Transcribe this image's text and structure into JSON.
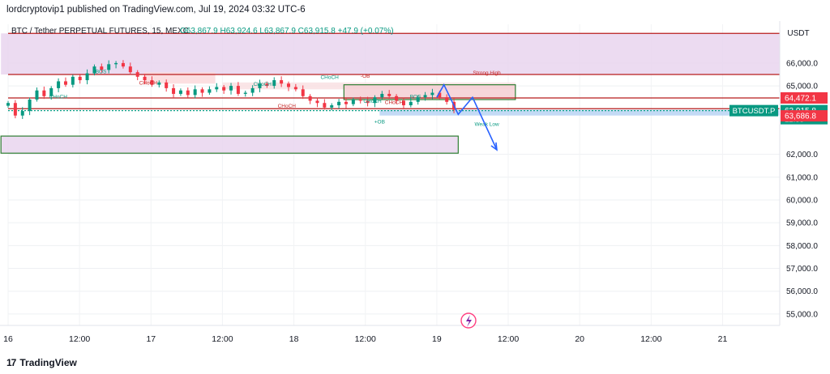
{
  "header": {
    "published": "lordcryptovip1 published on TradingView.com, Jul 19, 2024 03:32 UTC-6"
  },
  "footer": {
    "brand": "TradingView",
    "logo": "tradingview-logo"
  },
  "chart_data": {
    "type": "candlestick",
    "symbol_line": "BTC / Tether PERPETUAL FUTURES, 15, MEXC",
    "ohlc": {
      "O": "O63,867.9",
      "H": "H63,924.6",
      "L": "L63,867.9",
      "C": "C63,915.8",
      "change": "+47.9 (+0.07%)"
    },
    "currency": "USDT",
    "y_ticks": [
      {
        "label": "66,000.0",
        "value": 66000
      },
      {
        "label": "65,000.0",
        "value": 65000
      },
      {
        "label": "62,000.0",
        "value": 62000
      },
      {
        "label": "61,000.0",
        "value": 61000
      },
      {
        "label": "60,000.0",
        "value": 60000
      },
      {
        "label": "59,000.0",
        "value": 59000
      },
      {
        "label": "58,000.0",
        "value": 58000
      },
      {
        "label": "57,000.0",
        "value": 57000
      },
      {
        "label": "56,000.0",
        "value": 56000
      },
      {
        "label": "55,000.0",
        "value": 55000
      }
    ],
    "x_ticks": [
      {
        "label": "16",
        "t": 0
      },
      {
        "label": "12:00",
        "t": 0.5
      },
      {
        "label": "17",
        "t": 1
      },
      {
        "label": "12:00",
        "t": 1.5
      },
      {
        "label": "18",
        "t": 2
      },
      {
        "label": "12:00",
        "t": 2.5
      },
      {
        "label": "19",
        "t": 3
      },
      {
        "label": "12:00",
        "t": 3.5
      },
      {
        "label": "20",
        "t": 4
      },
      {
        "label": "12:00",
        "t": 4.5
      },
      {
        "label": "21",
        "t": 5
      }
    ],
    "price_tags": [
      {
        "text": "64,472.1",
        "value": 64472.1,
        "color": "#f23645"
      },
      {
        "text": "63,915.8",
        "value": 63915.8,
        "color": "#089981",
        "sub": "12:55"
      },
      {
        "text": "63,686.8",
        "value": 63686.8,
        "color": "#f23645"
      }
    ],
    "ticker_tag": {
      "text": "BTCUSDT.P",
      "color": "#089981"
    },
    "series": [
      {
        "name": "BTCUSDT.P",
        "close": [
          64250,
          63700,
          63900,
          64400,
          64800,
          64550,
          64900,
          65200,
          65050,
          65400,
          65250,
          65550,
          65850,
          65700,
          65950,
          66000,
          65850,
          65600,
          65400,
          65250,
          65050,
          65150,
          64900,
          64650,
          64800,
          64600,
          64850,
          64700,
          64850,
          64950,
          64800,
          65000,
          64650,
          64700,
          64900,
          65100,
          65000,
          65250,
          65100,
          64950,
          64850,
          64550,
          64350,
          64250,
          64050,
          64150,
          64300,
          64200,
          64400,
          64350,
          64250,
          64500,
          64650,
          64550,
          64350,
          64150,
          64300,
          64500,
          64600,
          64700,
          64500,
          64300,
          63950
        ]
      }
    ],
    "zones": [
      {
        "from": -0.05,
        "to": 5.4,
        "low": 65500,
        "high": 67300,
        "fill": "#e9d5ef"
      },
      {
        "from": 0.95,
        "to": 1.45,
        "low": 65100,
        "high": 65600,
        "fill": "#fbd9dc"
      },
      {
        "from": 1.5,
        "to": 3.55,
        "low": 64850,
        "high": 65150,
        "fill": "#f9e0e3"
      },
      {
        "from": 2.35,
        "to": 3.55,
        "low": 64400,
        "high": 65050,
        "fill": "#f5cfd3",
        "stroke": "#2e7d32"
      },
      {
        "from": -0.05,
        "to": 3.15,
        "low": 62050,
        "high": 62800,
        "fill": "#e9d5ef",
        "stroke": "#2e7d32"
      },
      {
        "from": 2.6,
        "to": 5.4,
        "low": 63700,
        "high": 63950,
        "fill": "#b9d3f3"
      }
    ],
    "levels": [
      {
        "value": 67300,
        "color": "#b71c1c"
      },
      {
        "value": 65500,
        "color": "#b71c1c"
      },
      {
        "value": 64472.1,
        "color": "#b71c1c"
      },
      {
        "value": 64000,
        "color": "#b71c1c"
      },
      {
        "value": 63915.8,
        "color": "#089981",
        "dash": true
      }
    ],
    "labels": [
      {
        "text": "CHoCH",
        "t": 0.35,
        "v": 64450,
        "color": "#089981"
      },
      {
        "text": "BOS",
        "t": 0.65,
        "v": 65550,
        "color": "#089981"
      },
      {
        "text": "CHoCH",
        "t": 0.98,
        "v": 65050,
        "color": "#c62828"
      },
      {
        "text": "CHoCH",
        "t": 1.78,
        "v": 65000,
        "color": "#089981"
      },
      {
        "text": "CHoCH",
        "t": 1.95,
        "v": 64050,
        "color": "#c62828"
      },
      {
        "text": "CHoCH",
        "t": 2.25,
        "v": 65300,
        "color": "#089981"
      },
      {
        "text": "-OB",
        "t": 2.5,
        "v": 65350,
        "color": "#c62828"
      },
      {
        "text": "CHoCH",
        "t": 2.55,
        "v": 64250,
        "color": "#089981"
      },
      {
        "text": "CHoCH",
        "t": 2.7,
        "v": 64200,
        "color": "#c62828"
      },
      {
        "text": "+OB",
        "t": 2.6,
        "v": 63350,
        "color": "#089981"
      },
      {
        "text": "BOS",
        "t": 2.85,
        "v": 64450,
        "color": "#089981"
      },
      {
        "text": "Strong High",
        "t": 3.35,
        "v": 65500,
        "color": "#c62828"
      },
      {
        "text": "Weak Low",
        "t": 3.35,
        "v": 63250,
        "color": "#089981"
      }
    ],
    "projection": [
      [
        3.0,
        64500
      ],
      [
        3.05,
        65050
      ],
      [
        3.15,
        63750
      ],
      [
        3.25,
        64500
      ],
      [
        3.42,
        62200
      ]
    ],
    "ylim": [
      54500,
      67700
    ],
    "xlim": [
      0,
      5.4
    ]
  }
}
